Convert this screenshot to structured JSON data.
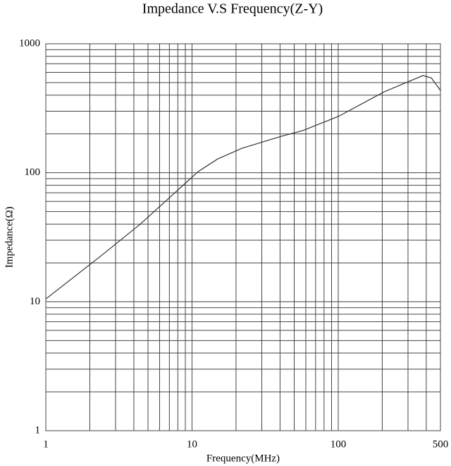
{
  "chart_data": {
    "type": "line",
    "title": "Impedance V.S Frequency(Z-Y)",
    "x_label": "Frequency(MHz)",
    "y_label": "Impedance(Ω)",
    "x": [
      1,
      2.4,
      4.4,
      6.2,
      8.7,
      11,
      15,
      22,
      41,
      57,
      100,
      206,
      379,
      433,
      500
    ],
    "values": [
      10.5,
      22.8,
      39.7,
      56.5,
      80,
      102,
      128,
      155,
      192,
      212,
      273,
      424,
      567,
      544,
      435
    ],
    "color": "#333333",
    "xlim": [
      1,
      500
    ],
    "ylim": [
      1,
      1000
    ],
    "xticks": [
      1,
      10,
      100,
      500
    ],
    "yticks": [
      1,
      10,
      100,
      1000
    ],
    "x_minor_grid": [
      2,
      3,
      4,
      5,
      6,
      7,
      8,
      9,
      20,
      30,
      40,
      50,
      60,
      70,
      80,
      90,
      200,
      300,
      400
    ],
    "y_minor_grid": [
      2,
      3,
      4,
      5,
      6,
      7,
      8,
      9,
      20,
      30,
      40,
      50,
      60,
      70,
      80,
      90,
      200,
      300,
      400,
      500,
      600,
      700,
      800,
      900
    ],
    "log_x": true,
    "log_y": true,
    "grid": true
  }
}
